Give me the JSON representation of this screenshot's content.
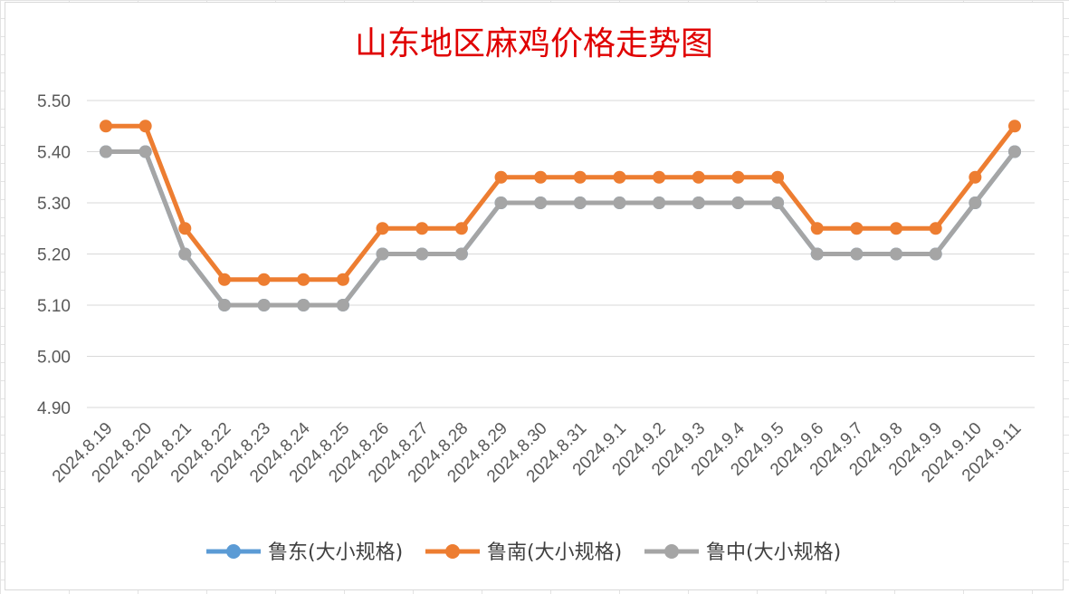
{
  "chart_data": {
    "type": "line",
    "title": "山东地区麻鸡价格走势图",
    "xlabel": "",
    "ylabel": "",
    "categories": [
      "2024.8.19",
      "2024.8.20",
      "2024.8.21",
      "2024.8.22",
      "2024.8.23",
      "2024.8.24",
      "2024.8.25",
      "2024.8.26",
      "2024.8.27",
      "2024.8.28",
      "2024.8.29",
      "2024.8.30",
      "2024.8.31",
      "2024.9.1",
      "2024.9.2",
      "2024.9.3",
      "2024.9.4",
      "2024.9.5",
      "2024.9.6",
      "2024.9.7",
      "2024.9.8",
      "2024.9.9",
      "2024.9.10",
      "2024.9.11"
    ],
    "ylim": [
      4.9,
      5.5
    ],
    "yticks": [
      "5.50",
      "5.40",
      "5.30",
      "5.20",
      "5.10",
      "5.00",
      "4.90"
    ],
    "grid": true,
    "legend_position": "bottom",
    "series": [
      {
        "name": "鲁东(大小规格)",
        "color": "#5b9bd5",
        "values": [
          5.4,
          5.4,
          5.2,
          5.1,
          5.1,
          5.1,
          5.1,
          5.2,
          5.2,
          5.2,
          5.3,
          5.3,
          5.3,
          5.3,
          5.3,
          5.3,
          5.3,
          5.3,
          5.2,
          5.2,
          5.2,
          5.2,
          5.3,
          5.4
        ]
      },
      {
        "name": "鲁南(大小规格)",
        "color": "#ed7d31",
        "values": [
          5.45,
          5.45,
          5.25,
          5.15,
          5.15,
          5.15,
          5.15,
          5.25,
          5.25,
          5.25,
          5.35,
          5.35,
          5.35,
          5.35,
          5.35,
          5.35,
          5.35,
          5.35,
          5.25,
          5.25,
          5.25,
          5.25,
          5.35,
          5.45
        ]
      },
      {
        "name": "鲁中(大小规格)",
        "color": "#a5a5a5",
        "values": [
          5.4,
          5.4,
          5.2,
          5.1,
          5.1,
          5.1,
          5.1,
          5.2,
          5.2,
          5.2,
          5.3,
          5.3,
          5.3,
          5.3,
          5.3,
          5.3,
          5.3,
          5.3,
          5.2,
          5.2,
          5.2,
          5.2,
          5.3,
          5.4
        ]
      }
    ]
  }
}
